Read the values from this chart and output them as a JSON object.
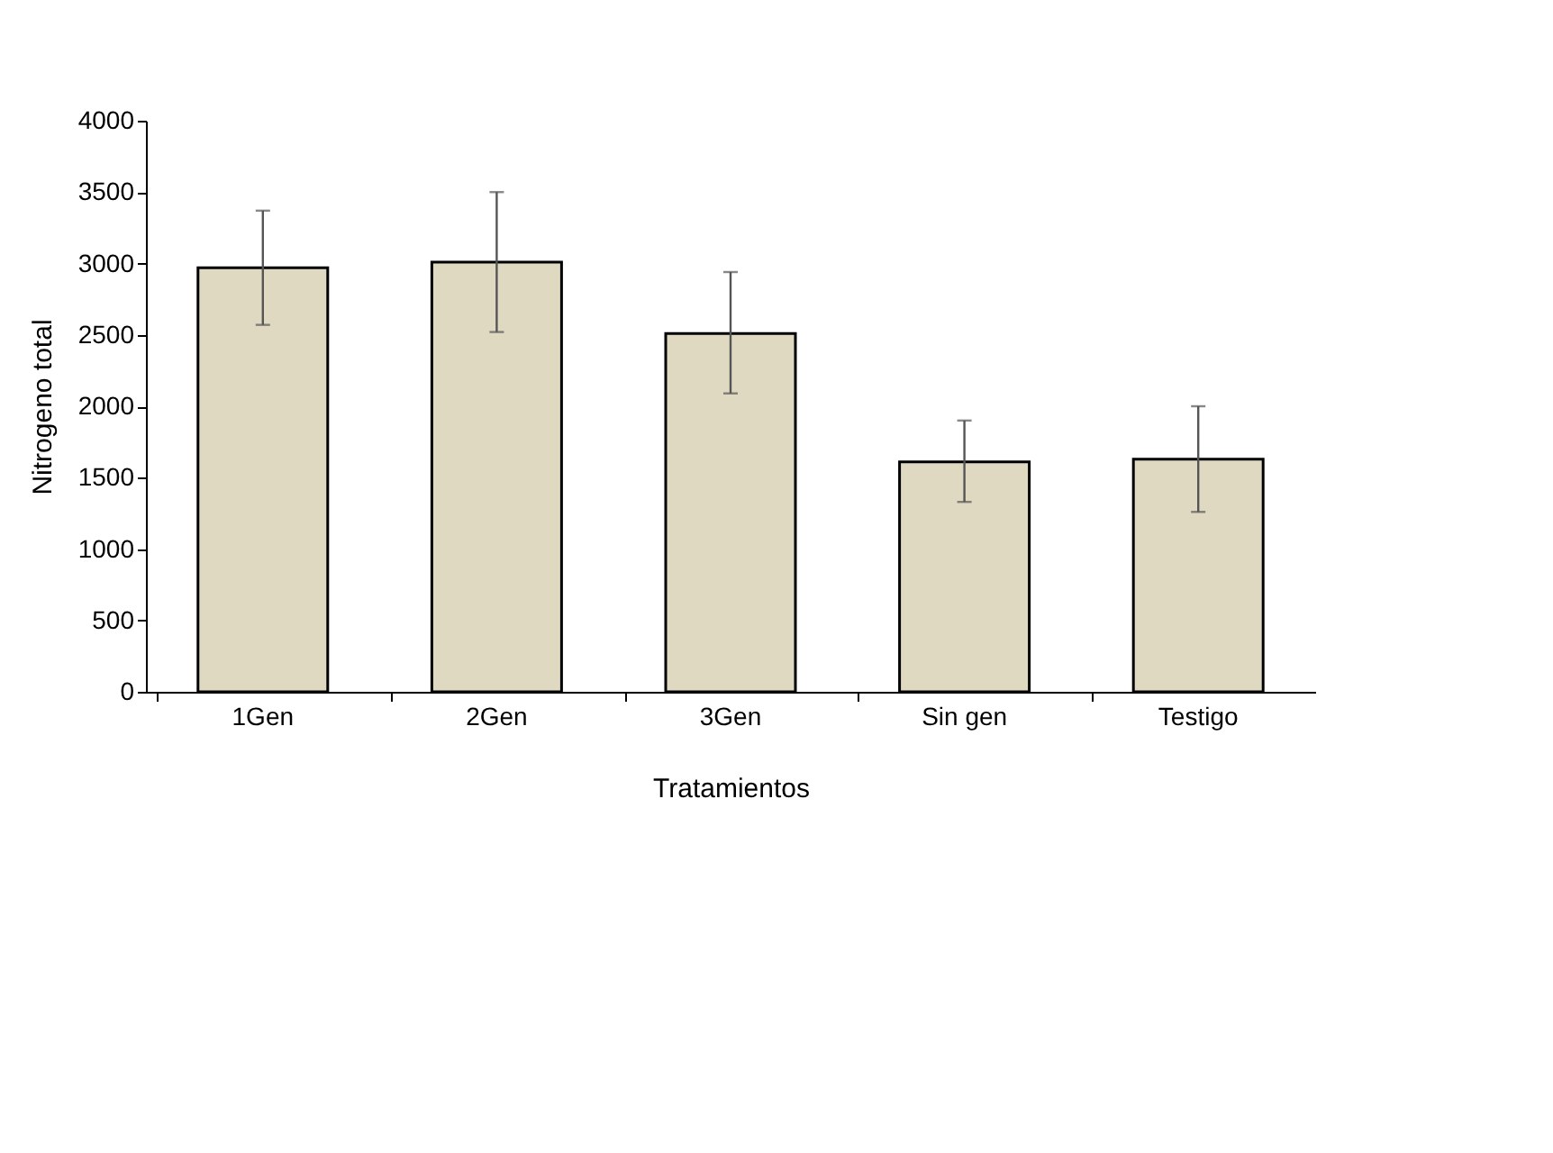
{
  "chart_data": {
    "type": "bar",
    "xlabel": "Tratamientos",
    "ylabel": "Nitrogeno total",
    "categories": [
      "1Gen",
      "2Gen",
      "3Gen",
      "Sin gen",
      "Testigo"
    ],
    "values": [
      2970,
      3010,
      2510,
      1610,
      1630
    ],
    "errors": [
      [
        2570,
        3370
      ],
      [
        2520,
        3500
      ],
      [
        2090,
        2940
      ],
      [
        1330,
        1900
      ],
      [
        1260,
        2000
      ]
    ],
    "color": "#e0d9c2",
    "ylim": [
      0,
      4000
    ],
    "yticks": [
      0,
      500,
      1000,
      1500,
      2000,
      2500,
      3000,
      3500,
      4000
    ],
    "grid": false
  }
}
